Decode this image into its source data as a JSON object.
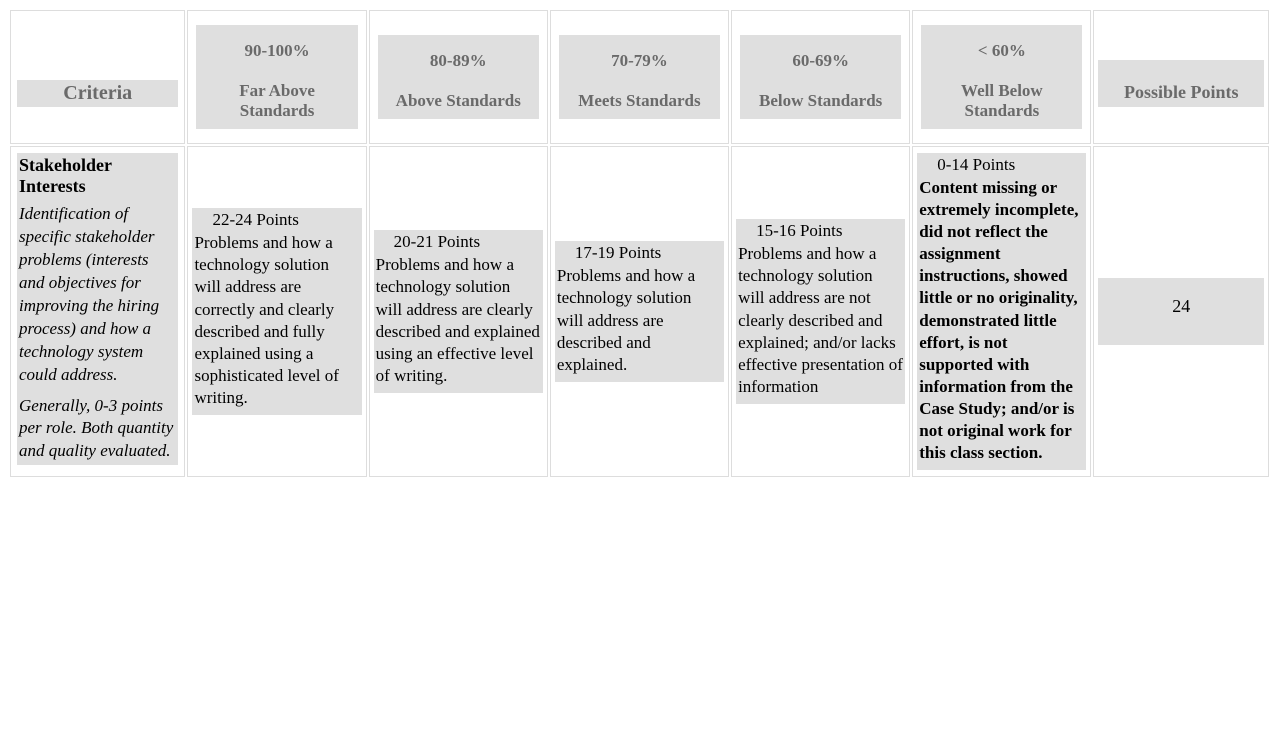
{
  "colors": {
    "page_bg": "#ffffff",
    "cell_border": "#dddddd",
    "shade_bg": "#dfdfdf",
    "header_text": "#6a6a6a",
    "body_text": "#000000"
  },
  "typography": {
    "font_family": "Georgia, Times New Roman, serif",
    "base_fontsize": 17,
    "header_fontsize": 20,
    "points_header_fontsize": 18
  },
  "header": {
    "criteria_label": "Criteria",
    "possible_points_label": "Possible Points",
    "levels": [
      {
        "percent": "90-100%",
        "label": "Far Above Standards"
      },
      {
        "percent": "80-89%",
        "label": "Above Standards"
      },
      {
        "percent": "70-79%",
        "label": "Meets Standards"
      },
      {
        "percent": "60-69%",
        "label": "Below Standards"
      },
      {
        "percent": "< 60%",
        "label": "Well Below Standards"
      }
    ]
  },
  "row": {
    "title": "Stakeholder Interests",
    "description": "Identification of specific stakeholder problems (interests and objectives for improving the hiring process) and how a technology system could address.",
    "note": "Generally, 0-3 points per role. Both quantity and quality evaluated.",
    "possible_points": "24",
    "cells": [
      {
        "points": "22-24 Points",
        "text": "Problems and how a technology solution will address are correctly and clearly described and fully explained using a sophisticated level of writing.",
        "bold": false
      },
      {
        "points": "20-21 Points",
        "text": "Problems and how a technology solution will address are clearly described and explained using an effective level of writing.",
        "bold": false
      },
      {
        "points": "17-19 Points",
        "text": "Problems and how a technology solution will address are described and explained.",
        "bold": false
      },
      {
        "points": "15-16 Points",
        "text": "Problems and how a technology solution will address are not clearly described and explained; and/or lacks effective presentation of information",
        "bold": false
      },
      {
        "points": "0-14 Points",
        "text": "Content missing or extremely incomplete, did not reflect the assignment instructions, showed little or no originality, demonstrated little effort, is not supported with information from the Case Study; and/or is not original work for this class section.",
        "bold": true
      }
    ]
  }
}
